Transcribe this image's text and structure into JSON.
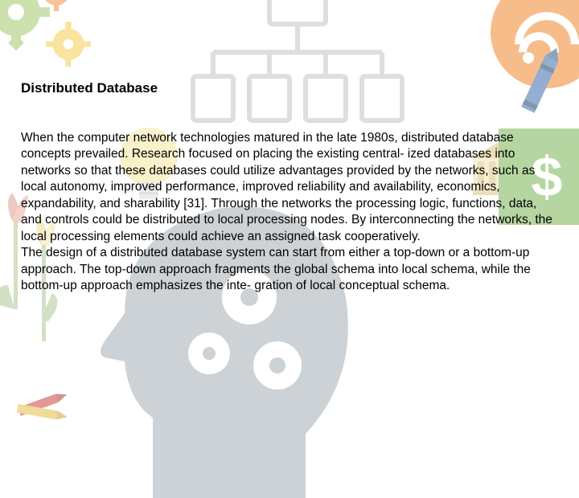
{
  "title": "Distributed Database",
  "paragraph": "When the computer network technologies matured in the late 1980s, distributed database concepts prevailed. Research focused on placing the existing central- ized databases into networks so that these databases could utilize advantages provided by the networks, such as local autonomy, improved performance, improved reliability and availability, economics, expandability, and sharability [31]. Through the networks the processing logic, functions, data, and controls could be distributed to local processing nodes. By interconnecting the networks, the local processing elements could achieve an assigned task cooperatively.\nThe design of a distributed database system can start from either a top-down or a bottom-up approach. The top-down approach fragments the global schema into local schema, while the bottom-up approach emphasizes the inte- gration of local conceptual schema.",
  "colors": {
    "gear_green": "#8fbf4d",
    "gear_orange": "#ef7d1a",
    "gear_yellow": "#f2c22b",
    "org_gray": "#bfbfbf",
    "dollar_green": "#6fae45",
    "bank_gold": "#c9a23b",
    "head_gray": "#9aa7ae",
    "bulb_yellow": "#eacd3e",
    "tulip_red": "#c14d3a",
    "tulip_yellow": "#e6c24a",
    "tulip_green": "#6f9a3e",
    "crayon_blue": "#2b5fa8",
    "crayon_red": "#c6362f",
    "crayon_yellow": "#e2b83a",
    "text": "#000000",
    "bg": "#ffffff"
  },
  "title_fontsize": 17,
  "body_fontsize": 15.5,
  "font_family": "Comic Sans MS",
  "dollar_sign": "$"
}
